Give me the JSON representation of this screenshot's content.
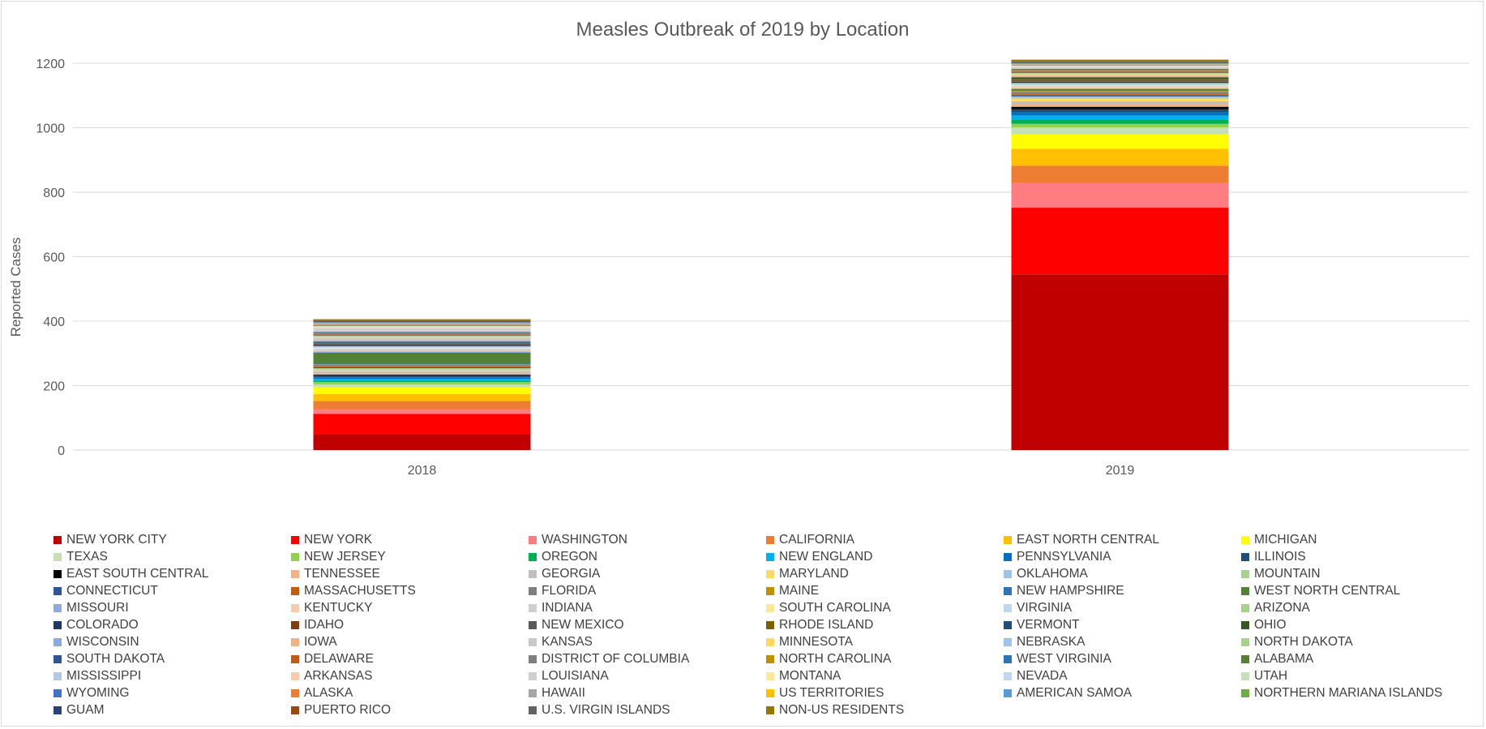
{
  "chart_data": {
    "type": "bar",
    "stacked": true,
    "title": "Measles Outbreak of 2019 by Location",
    "xlabel": "",
    "ylabel": "Reported  Cases",
    "ylim": [
      0,
      1200
    ],
    "yticks": [
      0,
      200,
      400,
      600,
      800,
      1000,
      1200
    ],
    "grid": true,
    "legend_position": "bottom",
    "categories": [
      "2018",
      "2019"
    ],
    "series": [
      {
        "name": "NEW YORK CITY",
        "color": "#C00000",
        "values": [
          50,
          545
        ]
      },
      {
        "name": "NEW YORK",
        "color": "#FF0000",
        "values": [
          62,
          207
        ]
      },
      {
        "name": "WASHINGTON",
        "color": "#FF7C80",
        "values": [
          15,
          76
        ]
      },
      {
        "name": "CALIFORNIA",
        "color": "#ED7D31",
        "values": [
          25,
          54
        ]
      },
      {
        "name": "EAST NORTH CENTRAL",
        "color": "#FFC000",
        "values": [
          22,
          53
        ]
      },
      {
        "name": "MICHIGAN",
        "color": "#FFFF00",
        "values": [
          20,
          44
        ]
      },
      {
        "name": "TEXAS",
        "color": "#C5E0B4",
        "values": [
          9,
          22
        ]
      },
      {
        "name": "NEW JERSEY",
        "color": "#92D050",
        "values": [
          8,
          11
        ]
      },
      {
        "name": "OREGON",
        "color": "#00B050",
        "values": [
          3,
          14
        ]
      },
      {
        "name": "NEW ENGLAND",
        "color": "#00B0F0",
        "values": [
          7,
          12
        ]
      },
      {
        "name": "PENNSYLVANIA",
        "color": "#0070C0",
        "values": [
          5,
          10
        ]
      },
      {
        "name": "ILLINOIS",
        "color": "#1F4E79",
        "values": [
          6,
          9
        ]
      },
      {
        "name": "EAST SOUTH CENTRAL",
        "color": "#000000",
        "values": [
          2,
          8
        ]
      },
      {
        "name": "TENNESSEE",
        "color": "#F4B183",
        "values": [
          4,
          8
        ]
      },
      {
        "name": "GEORGIA",
        "color": "#BFBFBF",
        "values": [
          6,
          9
        ]
      },
      {
        "name": "MARYLAND",
        "color": "#FFD966",
        "values": [
          4,
          8
        ]
      },
      {
        "name": "OKLAHOMA",
        "color": "#9DC3E6",
        "values": [
          3,
          3
        ]
      },
      {
        "name": "MOUNTAIN",
        "color": "#A9D18E",
        "values": [
          3,
          4
        ]
      },
      {
        "name": "CONNECTICUT",
        "color": "#2F5597",
        "values": [
          3,
          4
        ]
      },
      {
        "name": "MASSACHUSETTS",
        "color": "#C55A11",
        "values": [
          3,
          3
        ]
      },
      {
        "name": "FLORIDA",
        "color": "#7F7F7F",
        "values": [
          4,
          6
        ]
      },
      {
        "name": "MAINE",
        "color": "#BF9000",
        "values": [
          2,
          4
        ]
      },
      {
        "name": "NEW HAMPSHIRE",
        "color": "#2E75B6",
        "values": [
          2,
          2
        ]
      },
      {
        "name": "WEST NORTH CENTRAL",
        "color": "#548235",
        "values": [
          34,
          4
        ]
      },
      {
        "name": "MISSOURI",
        "color": "#8FAADC",
        "values": [
          4,
          2
        ]
      },
      {
        "name": "KENTUCKY",
        "color": "#F8CBAD",
        "values": [
          2,
          4
        ]
      },
      {
        "name": "INDIANA",
        "color": "#D0CECE",
        "values": [
          6,
          3
        ]
      },
      {
        "name": "SOUTH CAROLINA",
        "color": "#FFE699",
        "values": [
          3,
          2
        ]
      },
      {
        "name": "VIRGINIA",
        "color": "#BDD7EE",
        "values": [
          3,
          4
        ]
      },
      {
        "name": "ARIZONA",
        "color": "#A9D18E",
        "values": [
          2,
          4
        ]
      },
      {
        "name": "COLORADO",
        "color": "#203864",
        "values": [
          2,
          4
        ]
      },
      {
        "name": "IDAHO",
        "color": "#843C0C",
        "values": [
          2,
          1
        ]
      },
      {
        "name": "NEW MEXICO",
        "color": "#595959",
        "values": [
          4,
          4
        ]
      },
      {
        "name": "RHODE ISLAND",
        "color": "#7F6000",
        "values": [
          2,
          2
        ]
      },
      {
        "name": "VERMONT",
        "color": "#1F4E79",
        "values": [
          2,
          1
        ]
      },
      {
        "name": "OHIO",
        "color": "#385723",
        "values": [
          2,
          5
        ]
      },
      {
        "name": "WISCONSIN",
        "color": "#8EA9DB",
        "values": [
          3,
          2
        ]
      },
      {
        "name": "IOWA",
        "color": "#F4B183",
        "values": [
          2,
          3
        ]
      },
      {
        "name": "KANSAS",
        "color": "#C9C9C9",
        "values": [
          8,
          2
        ]
      },
      {
        "name": "MINNESOTA",
        "color": "#FFD966",
        "values": [
          2,
          3
        ]
      },
      {
        "name": "NEBRASKA",
        "color": "#9DC3E6",
        "values": [
          2,
          2
        ]
      },
      {
        "name": "NORTH DAKOTA",
        "color": "#A9D18E",
        "values": [
          2,
          2
        ]
      },
      {
        "name": "SOUTH DAKOTA",
        "color": "#2F5597",
        "values": [
          2,
          2
        ]
      },
      {
        "name": "DELAWARE",
        "color": "#C55A11",
        "values": [
          2,
          2
        ]
      },
      {
        "name": "DISTRICT OF COLUMBIA",
        "color": "#7F7F7F",
        "values": [
          2,
          2
        ]
      },
      {
        "name": "NORTH CAROLINA",
        "color": "#BF9000",
        "values": [
          2,
          3
        ]
      },
      {
        "name": "WEST VIRGINIA",
        "color": "#2E75B6",
        "values": [
          2,
          2
        ]
      },
      {
        "name": "ALABAMA",
        "color": "#548235",
        "values": [
          2,
          2
        ]
      },
      {
        "name": "MISSISSIPPI",
        "color": "#B4C7E7",
        "values": [
          2,
          1
        ]
      },
      {
        "name": "ARKANSAS",
        "color": "#F8CBAD",
        "values": [
          2,
          1
        ]
      },
      {
        "name": "LOUISIANA",
        "color": "#D0CECE",
        "values": [
          8,
          3
        ]
      },
      {
        "name": "MONTANA",
        "color": "#FFE699",
        "values": [
          2,
          1
        ]
      },
      {
        "name": "NEVADA",
        "color": "#BDD7EE",
        "values": [
          2,
          2
        ]
      },
      {
        "name": "UTAH",
        "color": "#C5E0B4",
        "values": [
          2,
          2
        ]
      },
      {
        "name": "WYOMING",
        "color": "#4472C4",
        "values": [
          2,
          1
        ]
      },
      {
        "name": "ALASKA",
        "color": "#ED7D31",
        "values": [
          2,
          1
        ]
      },
      {
        "name": "HAWAII",
        "color": "#A5A5A5",
        "values": [
          2,
          2
        ]
      },
      {
        "name": "US TERRITORIES",
        "color": "#FFC000",
        "values": [
          2,
          1
        ]
      },
      {
        "name": "AMERICAN SAMOA",
        "color": "#5B9BD5",
        "values": [
          2,
          1
        ]
      },
      {
        "name": "NORTHERN MARIANA ISLANDS",
        "color": "#70AD47",
        "values": [
          2,
          1
        ]
      },
      {
        "name": "GUAM",
        "color": "#264478",
        "values": [
          2,
          1
        ]
      },
      {
        "name": "PUERTO RICO",
        "color": "#9E480E",
        "values": [
          2,
          2
        ]
      },
      {
        "name": "U.S. VIRGIN ISLANDS",
        "color": "#636363",
        "values": [
          2,
          3
        ]
      },
      {
        "name": "NON-US RESIDENTS",
        "color": "#997300",
        "values": [
          3,
          5
        ]
      }
    ]
  }
}
